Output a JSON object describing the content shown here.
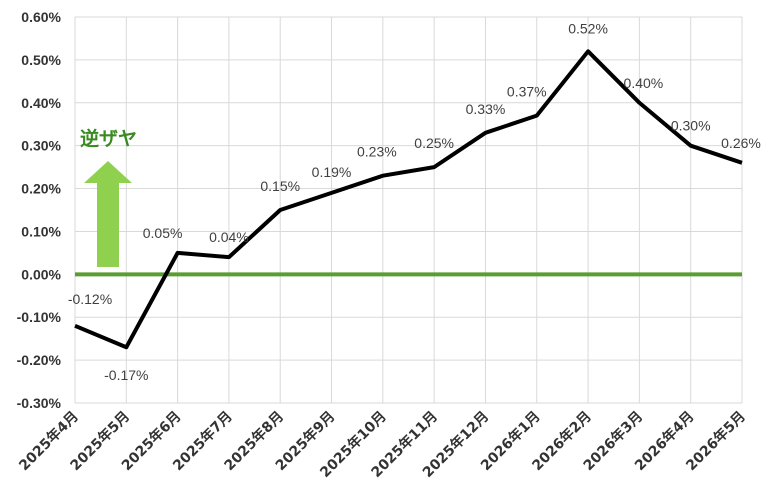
{
  "chart_data": {
    "type": "line",
    "categories": [
      "2025年4月",
      "2025年5月",
      "2025年6月",
      "2025年7月",
      "2025年8月",
      "2025年9月",
      "2025年10月",
      "2025年11月",
      "2025年12月",
      "2026年1月",
      "2026年2月",
      "2026年3月",
      "2026年4月",
      "2026年5月"
    ],
    "series": [
      {
        "values": [
          -0.12,
          -0.17,
          0.05,
          0.04,
          0.15,
          0.19,
          0.23,
          0.25,
          0.33,
          0.37,
          0.52,
          0.4,
          0.3,
          0.26
        ],
        "labels": [
          "-0.12%",
          "-0.17%",
          "0.05%",
          "0.04%",
          "0.15%",
          "0.19%",
          "0.23%",
          "0.25%",
          "0.33%",
          "0.37%",
          "0.52%",
          "0.40%",
          "0.30%",
          "0.26%"
        ],
        "color": "#000000"
      }
    ],
    "ylim": [
      -0.3,
      0.6
    ],
    "yticks": [
      0.6,
      0.5,
      0.4,
      0.3,
      0.2,
      0.1,
      0.0,
      -0.1,
      -0.2,
      -0.3
    ],
    "ytick_labels": [
      "0.60%",
      "0.50%",
      "0.40%",
      "0.30%",
      "0.20%",
      "0.10%",
      "0.00%",
      "-0.10%",
      "-0.20%",
      "-0.30%"
    ],
    "grid": true,
    "zero_line_color": "#5a9e32",
    "annotation": {
      "text": "逆ザヤ",
      "color": "#3a8a22",
      "arrow_color": "#8fd14f",
      "direction": "up"
    },
    "xlabel": "",
    "ylabel": ""
  }
}
